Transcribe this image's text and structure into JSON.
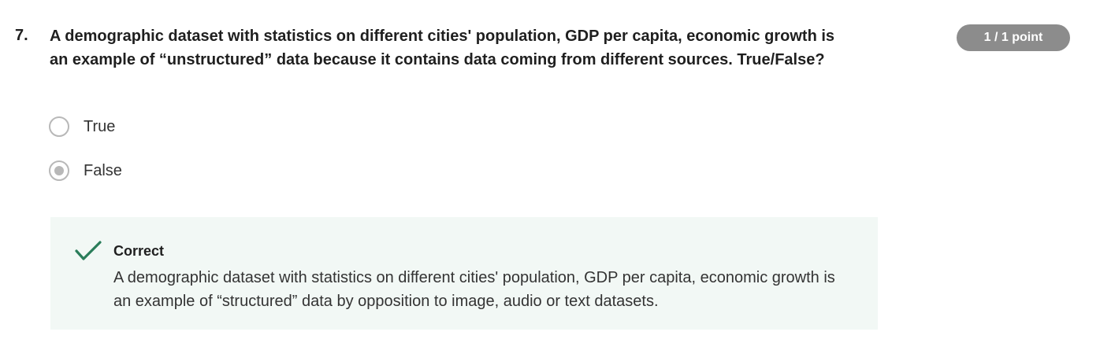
{
  "question": {
    "number": "7.",
    "text": "A demographic dataset with statistics on different cities' population, GDP per capita, economic growth is an example of “unstructured” data because it contains data coming from different sources. True/False?",
    "score": "1 / 1 point"
  },
  "options": [
    {
      "label": "True",
      "selected": false
    },
    {
      "label": "False",
      "selected": true
    }
  ],
  "feedback": {
    "status": "Correct",
    "icon": "checkmark-icon",
    "color": "#2a7d5a",
    "background": "#f2f8f5",
    "explanation": "A demographic dataset with statistics on different cities' population, GDP per capita, economic growth is an example of “structured” data by opposition to image, audio or text datasets."
  }
}
